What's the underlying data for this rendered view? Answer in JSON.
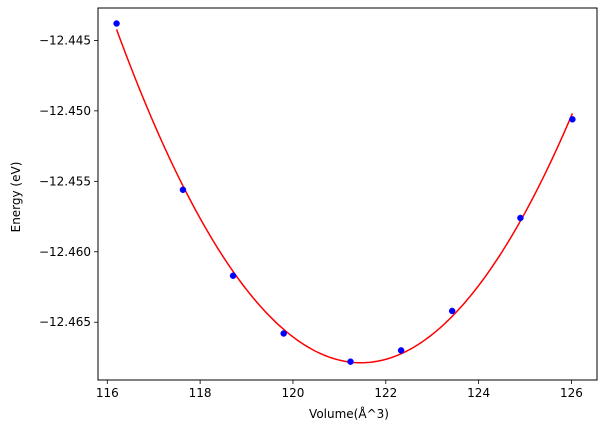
{
  "chart_data": {
    "type": "scatter",
    "xlabel": "Volume(Å^3)",
    "ylabel": "Energy (eV)",
    "xlim": [
      115.8,
      126.55
    ],
    "ylim": [
      -12.4691,
      -12.4427
    ],
    "x_ticks": [
      116,
      118,
      120,
      122,
      124,
      126
    ],
    "y_ticks": [
      -12.445,
      -12.45,
      -12.455,
      -12.46,
      -12.465
    ],
    "x_tick_labels": [
      "116",
      "118",
      "120",
      "122",
      "124",
      "126"
    ],
    "y_tick_labels": [
      "−12.445",
      "−12.450",
      "−12.455",
      "−12.460",
      "−12.465"
    ],
    "grid": false,
    "series": [
      {
        "kind": "points",
        "color": "#0000ff",
        "x": [
          116.2,
          117.63,
          118.71,
          119.8,
          121.24,
          122.33,
          123.43,
          124.9,
          126.02
        ],
        "y": [
          -12.4438,
          -12.4556,
          -12.4617,
          -12.4658,
          -12.4678,
          -12.467,
          -12.4642,
          -12.4576,
          -12.4506
        ]
      },
      {
        "kind": "fit-line",
        "color": "#ff0000",
        "x_range": [
          116.2,
          126.02
        ]
      }
    ]
  }
}
